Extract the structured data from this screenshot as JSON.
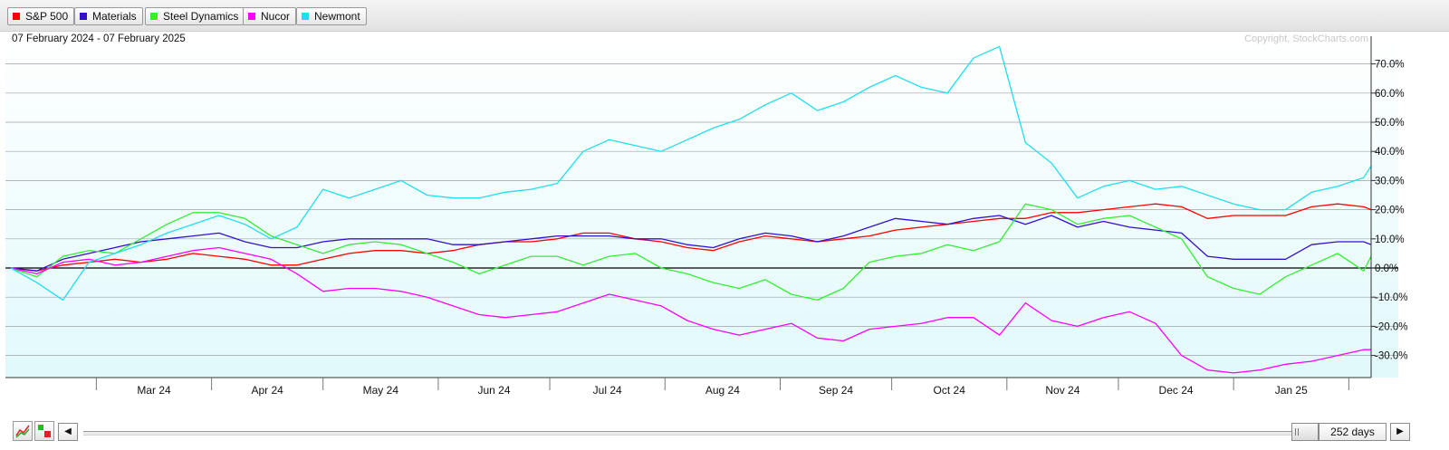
{
  "chart_data": {
    "type": "line",
    "date_range": "07 February 2024 - 07 February 2025",
    "copyright": "Copyright, StockCharts.com",
    "x_labels": [
      "Mar 24",
      "Apr 24",
      "May 24",
      "Jun 24",
      "Jul 24",
      "Aug 24",
      "Sep 24",
      "Oct 24",
      "Nov 24",
      "Dec 24",
      "Jan 25"
    ],
    "y_ticks": [
      "70.0%",
      "60.0%",
      "50.0%",
      "40.0%",
      "30.0%",
      "20.0%",
      "10.0%",
      "0.0%",
      "-10.0%",
      "-20.0%",
      "-30.0%"
    ],
    "y_range": [
      -38,
      78
    ],
    "x": [
      "2024-02-07",
      "2024-02-14",
      "2024-02-21",
      "2024-02-28",
      "2024-03-06",
      "2024-03-13",
      "2024-03-20",
      "2024-03-27",
      "2024-04-03",
      "2024-04-10",
      "2024-04-17",
      "2024-04-24",
      "2024-05-01",
      "2024-05-08",
      "2024-05-15",
      "2024-05-22",
      "2024-05-29",
      "2024-06-05",
      "2024-06-12",
      "2024-06-19",
      "2024-06-26",
      "2024-07-03",
      "2024-07-10",
      "2024-07-17",
      "2024-07-24",
      "2024-07-31",
      "2024-08-07",
      "2024-08-14",
      "2024-08-21",
      "2024-08-28",
      "2024-09-04",
      "2024-09-11",
      "2024-09-18",
      "2024-09-25",
      "2024-10-02",
      "2024-10-09",
      "2024-10-16",
      "2024-10-23",
      "2024-10-30",
      "2024-11-06",
      "2024-11-13",
      "2024-11-20",
      "2024-11-27",
      "2024-12-04",
      "2024-12-11",
      "2024-12-18",
      "2024-12-25",
      "2025-01-01",
      "2025-01-08",
      "2025-01-15",
      "2025-01-22",
      "2025-01-29",
      "2025-02-05",
      "2025-02-07"
    ],
    "series": [
      {
        "name": "S&P 500",
        "color": "#ff0000",
        "values": [
          0,
          -1,
          1,
          2,
          3,
          2,
          3,
          5,
          4,
          3,
          1,
          1,
          3,
          5,
          6,
          6,
          5,
          6,
          8,
          9,
          9,
          10,
          12,
          12,
          10,
          9,
          7,
          6,
          9,
          11,
          10,
          9,
          10,
          11,
          13,
          14,
          15,
          16,
          17,
          17,
          19,
          19,
          20,
          21,
          22,
          21,
          17,
          18,
          18,
          18,
          21,
          22,
          21,
          20
        ]
      },
      {
        "name": "Materials",
        "color": "#3311cc",
        "values": [
          0,
          -1,
          3,
          5,
          7,
          9,
          10,
          11,
          12,
          9,
          7,
          7,
          9,
          10,
          10,
          10,
          10,
          8,
          8,
          9,
          10,
          11,
          11,
          11,
          10,
          10,
          8,
          7,
          10,
          12,
          11,
          9,
          11,
          14,
          17,
          16,
          15,
          17,
          18,
          15,
          18,
          14,
          16,
          14,
          13,
          12,
          4,
          3,
          3,
          3,
          8,
          9,
          9,
          8
        ]
      },
      {
        "name": "Steel Dynamics",
        "color": "#33ee33",
        "values": [
          0,
          -3,
          4,
          6,
          5,
          10,
          15,
          19,
          19,
          17,
          11,
          8,
          5,
          8,
          9,
          8,
          5,
          2,
          -2,
          1,
          4,
          4,
          1,
          4,
          5,
          0,
          -2,
          -5,
          -7,
          -4,
          -9,
          -11,
          -7,
          2,
          4,
          5,
          8,
          6,
          9,
          22,
          20,
          15,
          17,
          18,
          14,
          10,
          -3,
          -7,
          -9,
          -3,
          1,
          5,
          -1,
          4
        ]
      },
      {
        "name": "Nucor",
        "color": "#ff00ff",
        "values": [
          0,
          -2,
          2,
          3,
          1,
          2,
          4,
          6,
          7,
          5,
          3,
          -2,
          -8,
          -7,
          -7,
          -8,
          -10,
          -13,
          -16,
          -17,
          -16,
          -15,
          -12,
          -9,
          -11,
          -13,
          -18,
          -21,
          -23,
          -21,
          -19,
          -24,
          -25,
          -21,
          -20,
          -19,
          -17,
          -17,
          -23,
          -12,
          -18,
          -20,
          -17,
          -15,
          -19,
          -30,
          -35,
          -36,
          -35,
          -33,
          -32,
          -30,
          -28,
          -28
        ]
      },
      {
        "name": "Newmont",
        "color": "#22ddee",
        "values": [
          0,
          -5,
          -11,
          2,
          5,
          8,
          12,
          15,
          18,
          15,
          10,
          14,
          27,
          24,
          27,
          30,
          25,
          24,
          24,
          26,
          27,
          29,
          40,
          44,
          42,
          40,
          44,
          48,
          51,
          56,
          60,
          54,
          57,
          62,
          66,
          62,
          60,
          72,
          76,
          43,
          36,
          24,
          28,
          30,
          27,
          28,
          25,
          22,
          20,
          20,
          26,
          28,
          31,
          35
        ]
      }
    ]
  },
  "bottom": {
    "prev_label": "◀",
    "next_label": "▶",
    "range_label": "252 days"
  }
}
